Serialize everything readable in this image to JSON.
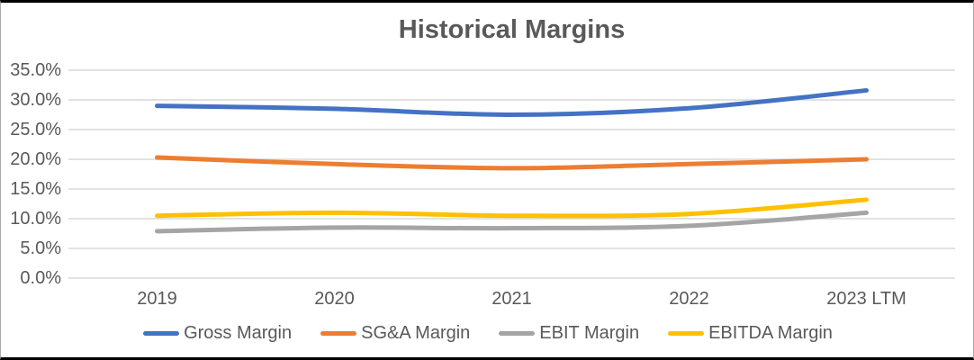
{
  "chart_data": {
    "type": "line",
    "title": "Historical Margins",
    "categories": [
      "2019",
      "2020",
      "2021",
      "2022",
      "2023 LTM"
    ],
    "series": [
      {
        "name": "Gross Margin",
        "color": "#4472C4",
        "values": [
          29.0,
          28.5,
          27.5,
          28.6,
          31.6
        ]
      },
      {
        "name": "SG&A Margin",
        "color": "#ED7D31",
        "values": [
          20.3,
          19.2,
          18.5,
          19.2,
          20.0
        ]
      },
      {
        "name": "EBIT Margin",
        "color": "#A5A5A5",
        "values": [
          7.9,
          8.5,
          8.4,
          8.8,
          11.0
        ]
      },
      {
        "name": "EBITDA Margin",
        "color": "#FFC000",
        "values": [
          10.5,
          11.0,
          10.5,
          10.8,
          13.2
        ]
      }
    ],
    "legend_order": [
      "Gross Margin",
      "SG&A Margin",
      "EBIT Margin",
      "EBITDA Margin"
    ],
    "y_ticks": [
      {
        "label": "0.0%",
        "value": 0
      },
      {
        "label": "5.0%",
        "value": 5
      },
      {
        "label": "10.0%",
        "value": 10
      },
      {
        "label": "15.0%",
        "value": 15
      },
      {
        "label": "20.0%",
        "value": 20
      },
      {
        "label": "25.0%",
        "value": 25
      },
      {
        "label": "30.0%",
        "value": 30
      },
      {
        "label": "35.0%",
        "value": 35
      }
    ],
    "ylim": [
      0,
      37.5
    ],
    "xlabel": "",
    "ylabel": "",
    "grid": true,
    "smoothed_lines": true,
    "legend_position": "bottom",
    "colors": {
      "gridline": "#D9D9D9",
      "text": "#595959",
      "background": "#FFFFFF"
    }
  }
}
